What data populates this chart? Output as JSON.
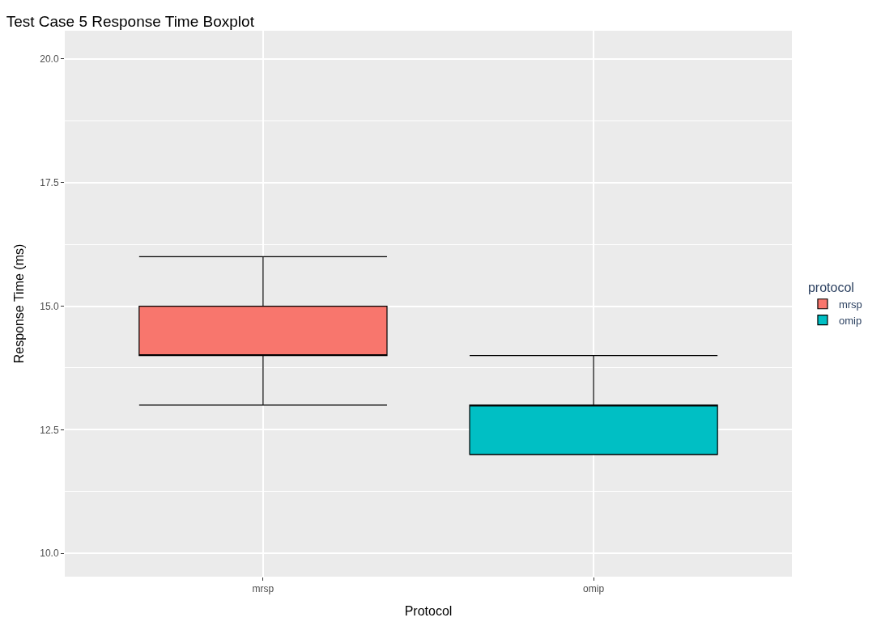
{
  "chart_data": {
    "type": "box",
    "title": "Test Case 5 Response Time Boxplot",
    "xlabel": "Protocol",
    "ylabel": "Response Time (ms)",
    "legend_title": "protocol",
    "categories": [
      "mrsp",
      "omip"
    ],
    "series": [
      {
        "name": "mrsp",
        "color": "#f8766d",
        "boxes": [
          {
            "low": 13,
            "q1": 14,
            "median": 14,
            "q3": 15,
            "high": 16
          },
          null
        ]
      },
      {
        "name": "omip",
        "color": "#00bfc4",
        "boxes": [
          null,
          {
            "low": 12,
            "q1": 12,
            "median": 13,
            "q3": 13,
            "high": 14
          }
        ]
      }
    ],
    "ylim": [
      9.53,
      20.57
    ],
    "yticks": [
      {
        "value": 10,
        "label": "10.0"
      },
      {
        "value": 12.5,
        "label": "12.5"
      },
      {
        "value": 15,
        "label": "15.0"
      },
      {
        "value": 17.5,
        "label": "17.5"
      },
      {
        "value": 20,
        "label": "20.0"
      }
    ],
    "grid": true,
    "legend": "right"
  }
}
